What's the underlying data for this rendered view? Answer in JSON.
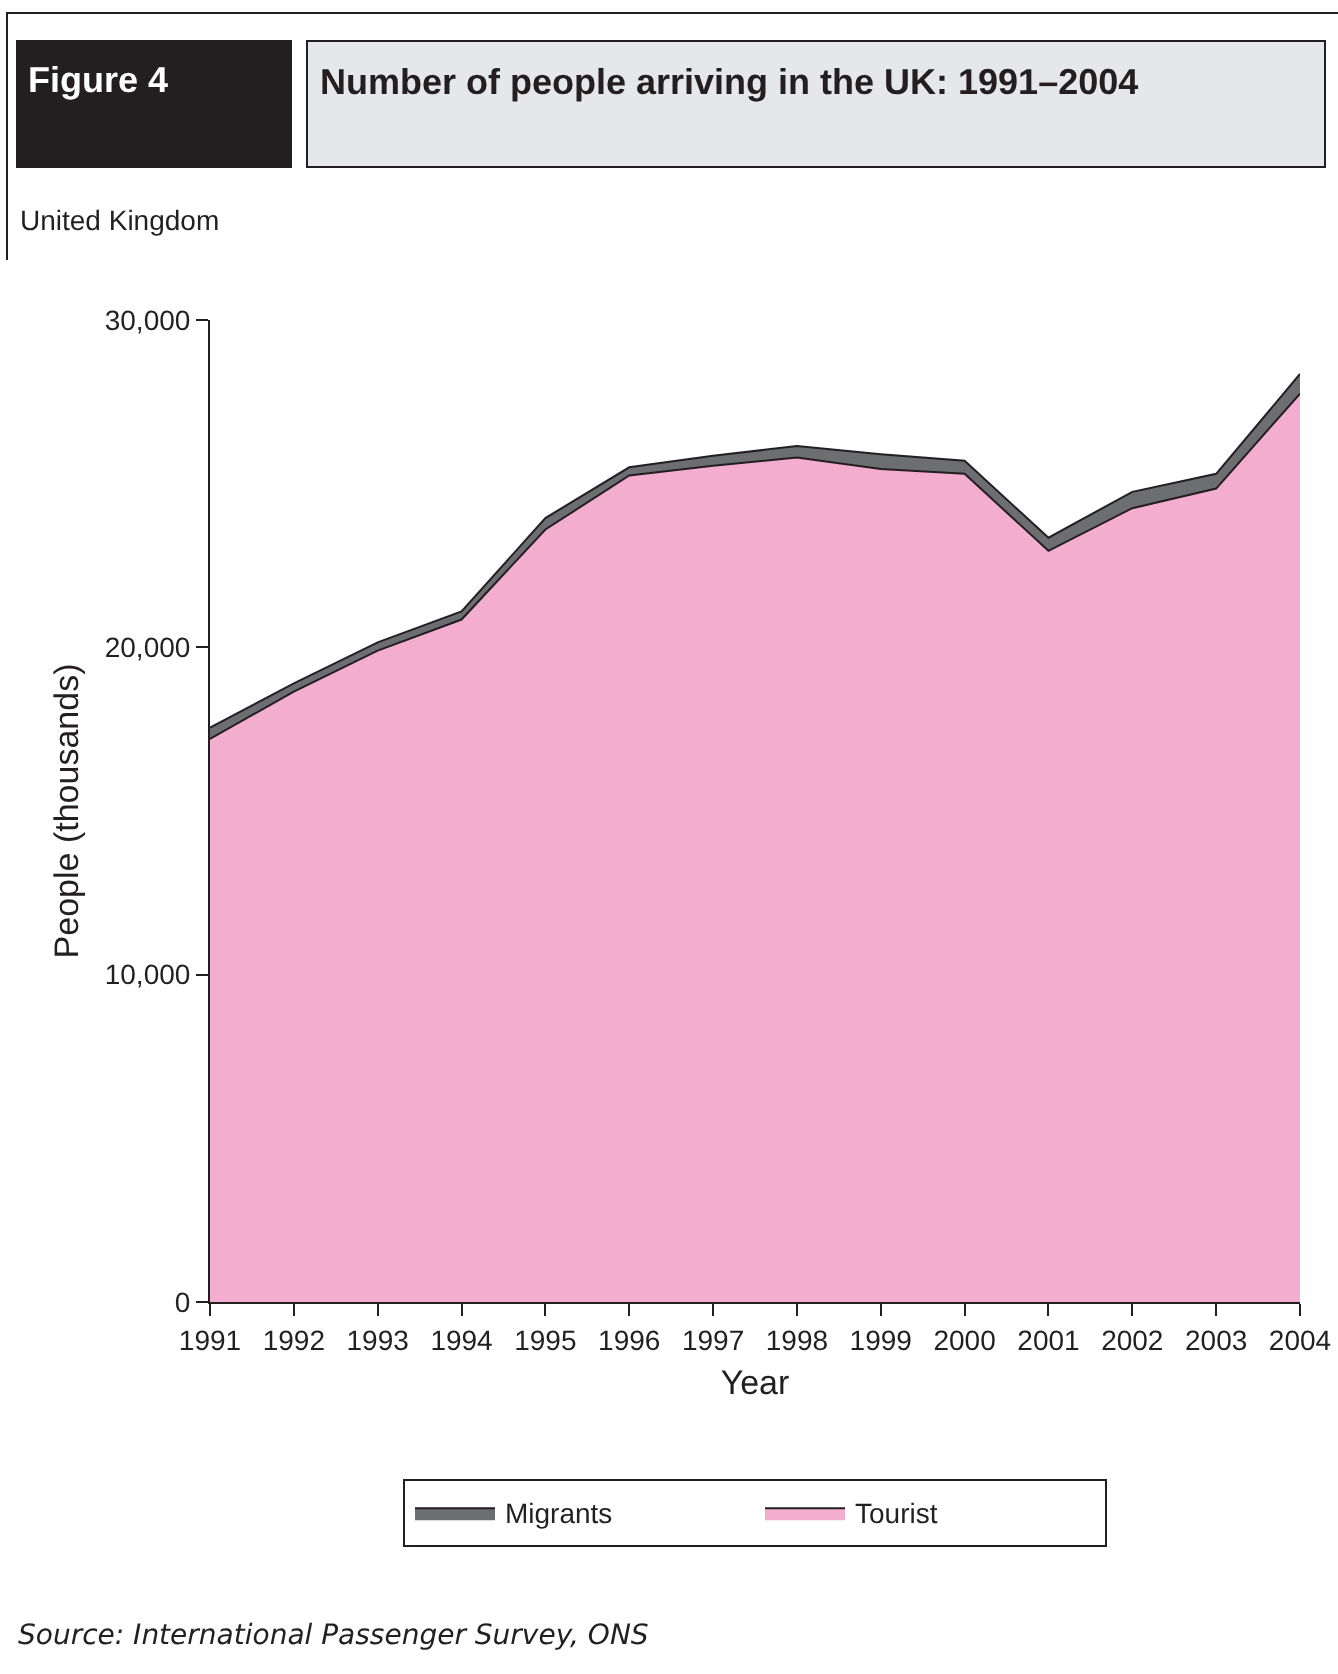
{
  "chart_data": {
    "type": "area",
    "title": "Number of people arriving in the UK: 1991–2004",
    "subtitle": "United Kingdom",
    "xlabel": "Year",
    "ylabel": "People (thousands)",
    "annotations": [
      "Figure 4",
      "Source: International Passenger Survey, ONS"
    ],
    "x": [
      1991,
      1992,
      1993,
      1994,
      1995,
      1996,
      1997,
      1998,
      1999,
      2000,
      2001,
      2002,
      2003,
      2004
    ],
    "stacked": true,
    "series": [
      {
        "name": "Tourist",
        "color": "#f3adce",
        "values": [
          17200,
          18650,
          19900,
          20850,
          23600,
          25250,
          25550,
          25800,
          25450,
          25300,
          22950,
          24250,
          24850,
          27750
        ]
      },
      {
        "name": "Migrants",
        "color": "#6d6e71",
        "values": [
          350,
          250,
          250,
          250,
          350,
          250,
          300,
          350,
          450,
          400,
          400,
          500,
          450,
          600
        ]
      }
    ],
    "xlim": [
      1991,
      2004
    ],
    "xticks": [
      1991,
      1992,
      1993,
      1994,
      1995,
      1996,
      1997,
      1998,
      1999,
      2000,
      2001,
      2002,
      2003,
      2004
    ],
    "ylim": [
      0,
      30000
    ],
    "yticks": [
      {
        "value": 0,
        "label": "0"
      },
      {
        "value": 10000,
        "label": "10,000"
      },
      {
        "value": 20000,
        "label": "20,000"
      },
      {
        "value": 30000,
        "label": "30,000"
      }
    ],
    "legend": "bottom"
  }
}
